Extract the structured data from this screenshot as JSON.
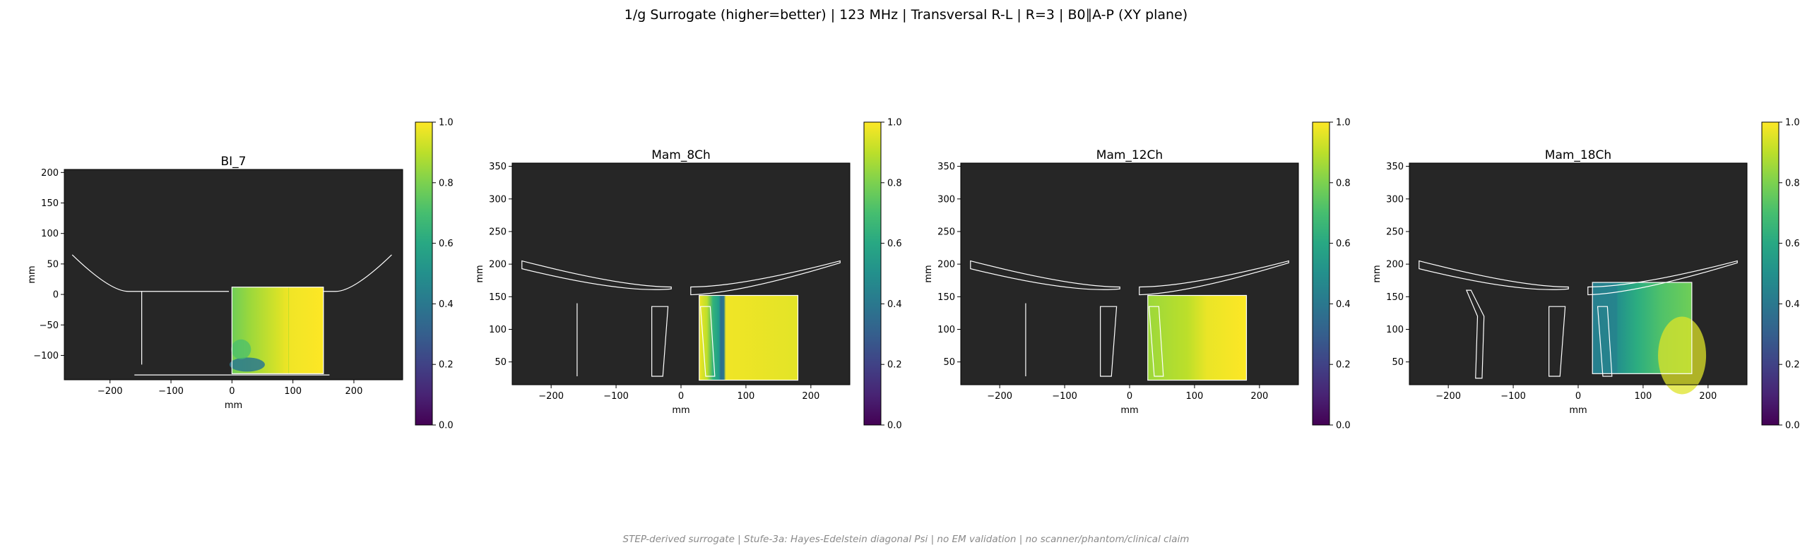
{
  "figure": {
    "suptitle": "1/g Surrogate (higher=better) | 123 MHz | Transversal R-L | R=3 | B0∥A-P (XY plane)",
    "footer": "STEP-derived surrogate | Stufe-3a: Hayes-Edelstein diagonal Psi | no EM validation | no scanner/phantom/clinical claim",
    "colormap": "viridis",
    "background_color": "#262626",
    "outline_color": "#ffffff"
  },
  "chart_data": [
    {
      "type": "heatmap",
      "title": "BI_7",
      "xlabel": "mm",
      "ylabel": "mm",
      "xlim": [
        -275,
        280
      ],
      "ylim": [
        -140,
        205
      ],
      "xticks": [
        -200,
        -100,
        0,
        100,
        200
      ],
      "yticks": [
        -100,
        -50,
        0,
        50,
        100,
        150,
        200
      ],
      "xtick_labels": [
        "−200",
        "−100",
        "0",
        "100",
        "200"
      ],
      "ytick_labels": [
        "−100",
        "−50",
        "0",
        "50",
        "100",
        "150",
        "200"
      ],
      "colorbar": {
        "range": [
          0.0,
          1.0
        ],
        "ticks": [
          "0.0",
          "0.2",
          "0.4",
          "0.6",
          "0.8",
          "1.0"
        ]
      },
      "field_extent": {
        "x": [
          0,
          150
        ],
        "y": [
          -130,
          12
        ]
      },
      "field_description": "mostly ~1.0; left portion gradient ~0.75 to 0.95; low values ~0.3 near bottom-left corner"
    },
    {
      "type": "heatmap",
      "title": "Mam_8Ch",
      "xlabel": "mm",
      "ylabel": "mm",
      "xlim": [
        -260,
        260
      ],
      "ylim": [
        15,
        355
      ],
      "xticks": [
        -200,
        -100,
        0,
        100,
        200
      ],
      "yticks": [
        50,
        100,
        150,
        200,
        250,
        300,
        350
      ],
      "xtick_labels": [
        "−200",
        "−100",
        "0",
        "100",
        "200"
      ],
      "ytick_labels": [
        "50",
        "100",
        "150",
        "200",
        "250",
        "300",
        "350"
      ],
      "colorbar": {
        "range": [
          0.0,
          1.0
        ],
        "ticks": [
          "0.0",
          "0.2",
          "0.4",
          "0.6",
          "0.8",
          "1.0"
        ]
      },
      "field_extent": {
        "x": [
          28,
          180
        ],
        "y": [
          22,
          152
        ]
      },
      "field_description": "yellow ~1.0 at left edge, green ~0.7 band, dark band ~0.35 near x=80, yellow ~0.95 for x>85"
    },
    {
      "type": "heatmap",
      "title": "Mam_12Ch",
      "xlabel": "mm",
      "ylabel": "mm",
      "xlim": [
        -260,
        260
      ],
      "ylim": [
        15,
        355
      ],
      "xticks": [
        -200,
        -100,
        0,
        100,
        200
      ],
      "yticks": [
        50,
        100,
        150,
        200,
        250,
        300,
        350
      ],
      "xtick_labels": [
        "−200",
        "−100",
        "0",
        "100",
        "200"
      ],
      "ytick_labels": [
        "50",
        "100",
        "150",
        "200",
        "250",
        "300",
        "350"
      ],
      "colorbar": {
        "range": [
          0.0,
          1.0
        ],
        "ticks": [
          "0.0",
          "0.2",
          "0.4",
          "0.6",
          "0.8",
          "1.0"
        ]
      },
      "field_extent": {
        "x": [
          28,
          180
        ],
        "y": [
          22,
          152
        ]
      },
      "field_description": "gradient from ~0.85 (x=28) to ~1.0 (x=180)"
    },
    {
      "type": "heatmap",
      "title": "Mam_18Ch",
      "xlabel": "mm",
      "ylabel": "mm",
      "xlim": [
        -260,
        260
      ],
      "ylim": [
        15,
        355
      ],
      "xticks": [
        -200,
        -100,
        0,
        100,
        200
      ],
      "yticks": [
        50,
        100,
        150,
        200,
        250,
        300,
        350
      ],
      "xtick_labels": [
        "−200",
        "−100",
        "0",
        "100",
        "200"
      ],
      "ytick_labels": [
        "50",
        "100",
        "150",
        "200",
        "250",
        "300",
        "350"
      ],
      "colorbar": {
        "range": [
          0.0,
          1.0
        ],
        "ticks": [
          "0.0",
          "0.2",
          "0.4",
          "0.6",
          "0.8",
          "1.0"
        ]
      },
      "field_extent": {
        "x": [
          22,
          175
        ],
        "y": [
          32,
          172
        ]
      },
      "field_description": "left part ~0.4 to 0.6 (blue-teal), right part ~0.65 to 0.95 with yellow toward bottom right"
    }
  ]
}
